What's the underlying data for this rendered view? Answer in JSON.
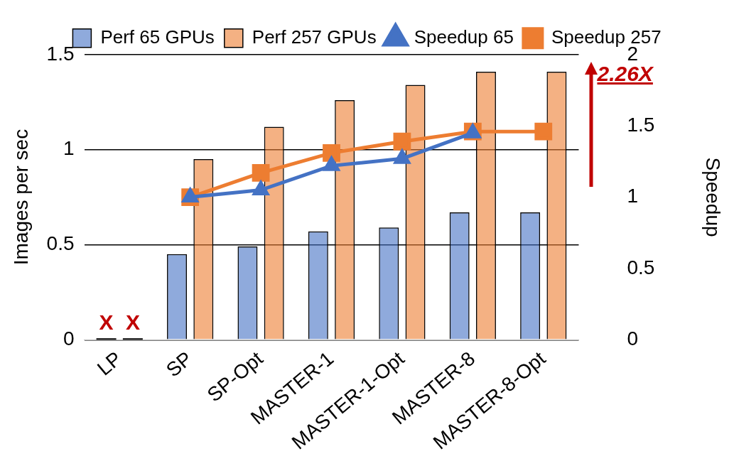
{
  "chart_data": {
    "type": "bar",
    "ylabel": "Images per sec",
    "y2label": "Speedup",
    "categories": [
      "LP",
      "SP",
      "SP-Opt",
      "MASTER-1",
      "MASTER-1-Opt",
      "MASTER-8",
      "MASTER-8-Opt"
    ],
    "series": [
      {
        "name": "Perf 65 GPUs",
        "color": "#4472c4",
        "values": [
          0,
          0.45,
          0.49,
          0.57,
          0.59,
          0.67,
          0.67
        ]
      },
      {
        "name": "Perf 257 GPUs",
        "color": "#ed7d31",
        "values": [
          0,
          0.95,
          1.12,
          1.26,
          1.34,
          1.41,
          1.41
        ]
      },
      {
        "name": "Speedup 65",
        "type": "line",
        "axis": "y2",
        "marker": "triangle",
        "color": "#4472c4",
        "values": [
          null,
          1.0,
          1.05,
          1.22,
          1.27,
          1.45,
          null
        ]
      },
      {
        "name": "Speedup 257",
        "type": "line",
        "axis": "y2",
        "marker": "square",
        "color": "#ed7d31",
        "values": [
          null,
          1.0,
          1.17,
          1.31,
          1.39,
          1.46,
          1.46
        ]
      }
    ],
    "ylim": [
      0,
      1.5
    ],
    "yticks": [
      0,
      0.5,
      1,
      1.5
    ],
    "y2lim": [
      0,
      2
    ],
    "y2ticks": [
      0,
      0.5,
      1,
      1.5,
      2
    ],
    "grid": "y",
    "legend": "top",
    "annotations": [
      {
        "text": "X",
        "x": "LP",
        "y": 0
      },
      {
        "text": "X",
        "x": "LP",
        "y": 0
      },
      "2.26X"
    ]
  }
}
